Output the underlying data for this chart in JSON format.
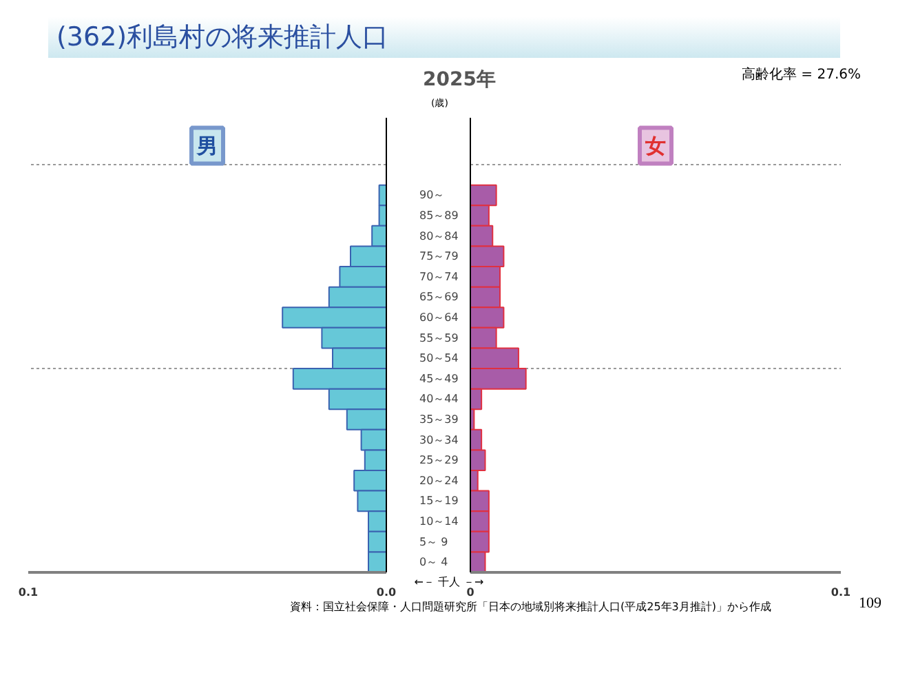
{
  "chart_data": [
    {
      "type": "bar",
      "orientation": "horizontal",
      "title": "(362)利島村の将来推計人口",
      "subtitle": "2025年",
      "ylabel": "(歳)",
      "xlabel": "←－ 千人 －→",
      "annotations": [
        "高齢化率 = 27.6%",
        "資料：国立社会保障・人口問題研究所「日本の地域別将来推計人口(平成25年3月推計)」から作成",
        "109"
      ],
      "categories": [
        "90～",
        "85～89",
        "80～84",
        "75～79",
        "70～74",
        "65～69",
        "60～64",
        "55～59",
        "50～54",
        "45～49",
        "40～44",
        "35～39",
        "30～34",
        "25～29",
        "20～24",
        "15～19",
        "10～14",
        "5～ 9",
        "0～ 4"
      ],
      "series": [
        {
          "name": "男",
          "color": "#66c8d8",
          "values": [
            0.002,
            0.002,
            0.004,
            0.01,
            0.013,
            0.016,
            0.029,
            0.018,
            0.015,
            0.026,
            0.016,
            0.011,
            0.007,
            0.006,
            0.009,
            0.008,
            0.005,
            0.005,
            0.005
          ]
        }
      ],
      "xlim": [
        0.1,
        0
      ],
      "xticks": [
        0.1,
        {
          "value": 0,
          "label": "0.0"
        }
      ],
      "grid": true
    },
    {
      "type": "bar",
      "orientation": "horizontal",
      "categories": [
        null,
        null,
        null,
        null,
        null,
        null,
        null,
        null,
        null,
        null,
        null,
        null,
        null,
        null,
        null,
        null,
        null,
        null,
        null
      ],
      "series": [
        {
          "name": "女",
          "color": "#a85ca8",
          "values": [
            0.007,
            0.005,
            0.006,
            0.009,
            0.008,
            0.008,
            0.009,
            0.007,
            0.013,
            0.015,
            0.003,
            0.001,
            0.003,
            0.004,
            0.002,
            0.005,
            0.005,
            0.005,
            0.004
          ]
        }
      ],
      "xlim": [
        0,
        0.1
      ],
      "xticks": [
        0,
        0.1
      ],
      "grid": true,
      "tick_labels": "x"
    }
  ]
}
